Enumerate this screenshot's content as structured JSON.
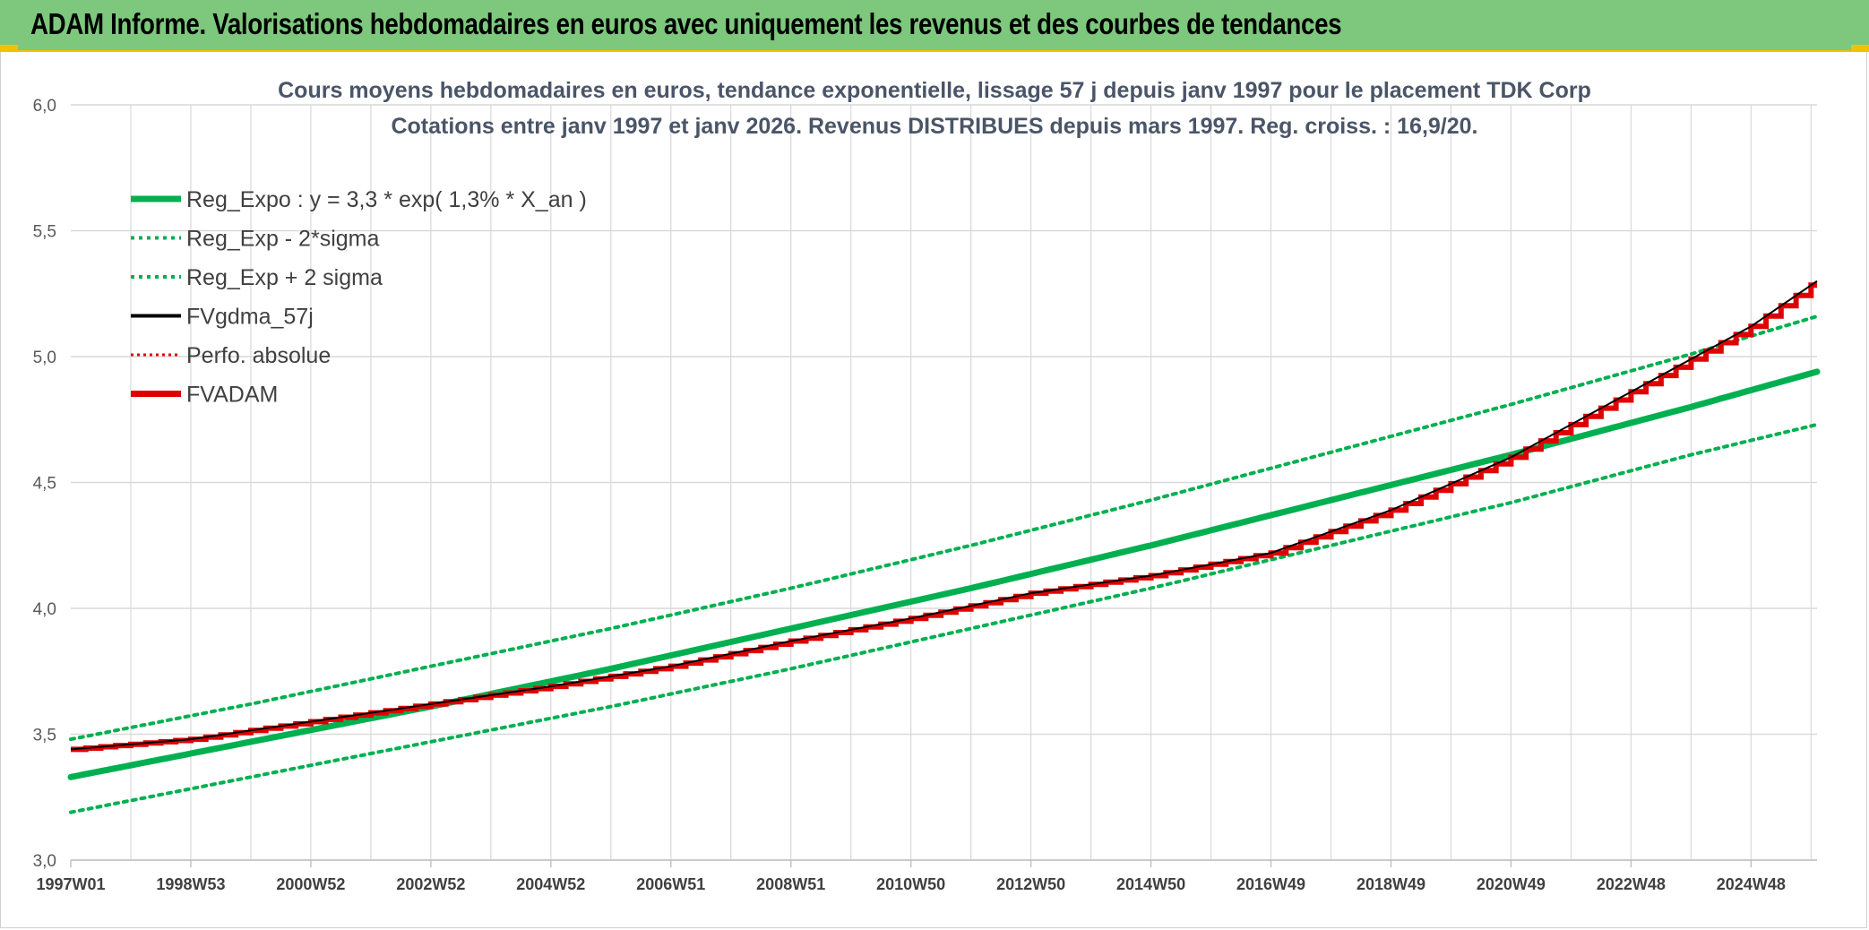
{
  "banner": {
    "title": "ADAM Informe. Valorisations hebdomadaires en euros avec uniquement les revenus et des courbes de tendances"
  },
  "colors": {
    "banner_bg": "#7dc87d",
    "accent": "#f2c200",
    "reg_green": "#00b050",
    "fvadam_red": "#e00000",
    "fvgdma_black": "#000000",
    "grid": "#d9d9d9"
  },
  "chart_data": {
    "type": "line",
    "title": [
      "Cours moyens hebdomadaires en euros, tendance exponentielle, lissage 57 j depuis janv 1997 pour le placement TDK Corp",
      "Cotations entre janv 1997 et janv 2026. Revenus DISTRIBUES depuis mars 1997. Reg. croiss. : 16,9/20."
    ],
    "xlabel": "",
    "ylabel": "",
    "ylim": [
      3.0,
      6.0
    ],
    "yticks": [
      "3,0",
      "3,5",
      "4,0",
      "4,5",
      "5,0",
      "5,5",
      "6,0"
    ],
    "ytick_values": [
      3.0,
      3.5,
      4.0,
      4.5,
      5.0,
      5.5,
      6.0
    ],
    "xlim": [
      1997.0,
      2026.1
    ],
    "xticks": [
      {
        "label": "1997W01",
        "year": 1997.0
      },
      {
        "label": "1998W53",
        "year": 1999.0
      },
      {
        "label": "2000W52",
        "year": 2001.0
      },
      {
        "label": "2002W52",
        "year": 2003.0
      },
      {
        "label": "2004W52",
        "year": 2005.0
      },
      {
        "label": "2006W51",
        "year": 2007.0
      },
      {
        "label": "2008W51",
        "year": 2009.0
      },
      {
        "label": "2010W50",
        "year": 2011.0
      },
      {
        "label": "2012W50",
        "year": 2013.0
      },
      {
        "label": "2014W50",
        "year": 2015.0
      },
      {
        "label": "2016W49",
        "year": 2017.0
      },
      {
        "label": "2018W49",
        "year": 2019.0
      },
      {
        "label": "2020W49",
        "year": 2021.0
      },
      {
        "label": "2022W48",
        "year": 2023.0
      },
      {
        "label": "2024W48",
        "year": 2025.0
      }
    ],
    "legend": [
      {
        "label": "Reg_Expo : y = 3,3 * exp( 1,3% *  X_an )",
        "color": "#00b050",
        "style": "solid-thick"
      },
      {
        "label": "Reg_Exp - 2*sigma",
        "color": "#00b050",
        "style": "dotted"
      },
      {
        "label": "Reg_Exp + 2 sigma",
        "color": "#00b050",
        "style": "dotted"
      },
      {
        "label": "FVgdma_57j",
        "color": "#000000",
        "style": "solid-thin"
      },
      {
        "label": "Perfo. absolue",
        "color": "#e00000",
        "style": "dotted-thin"
      },
      {
        "label": "FVADAM",
        "color": "#e00000",
        "style": "solid-thick"
      }
    ],
    "legend_position": "top-left",
    "series": [
      {
        "name": "Reg_Expo",
        "x": [
          1997.0,
          2000.0,
          2003.0,
          2006.0,
          2009.0,
          2012.0,
          2015.0,
          2018.0,
          2021.0,
          2024.0,
          2026.1
        ],
        "values": [
          3.33,
          3.47,
          3.61,
          3.76,
          3.92,
          4.08,
          4.25,
          4.43,
          4.61,
          4.8,
          4.94
        ]
      },
      {
        "name": "Reg_Exp - 2*sigma",
        "x": [
          1997.0,
          2000.0,
          2003.0,
          2006.0,
          2009.0,
          2012.0,
          2015.0,
          2018.0,
          2021.0,
          2024.0,
          2026.1
        ],
        "values": [
          3.19,
          3.33,
          3.47,
          3.61,
          3.76,
          3.92,
          4.08,
          4.25,
          4.42,
          4.61,
          4.73
        ]
      },
      {
        "name": "Reg_Exp + 2 sigma",
        "x": [
          1997.0,
          2000.0,
          2003.0,
          2006.0,
          2009.0,
          2012.0,
          2015.0,
          2018.0,
          2021.0,
          2024.0,
          2026.1
        ],
        "values": [
          3.48,
          3.62,
          3.77,
          3.92,
          4.08,
          4.25,
          4.43,
          4.62,
          4.81,
          5.01,
          5.16
        ]
      },
      {
        "name": "FVADAM",
        "x": [
          1997.0,
          1999.0,
          2001.0,
          2003.0,
          2005.0,
          2007.0,
          2009.0,
          2011.0,
          2013.0,
          2015.0,
          2017.0,
          2019.0,
          2021.0,
          2023.0,
          2025.0,
          2026.1
        ],
        "values": [
          3.44,
          3.48,
          3.55,
          3.62,
          3.69,
          3.77,
          3.87,
          3.96,
          4.06,
          4.13,
          4.22,
          4.39,
          4.6,
          4.86,
          5.12,
          5.3
        ]
      }
    ]
  }
}
